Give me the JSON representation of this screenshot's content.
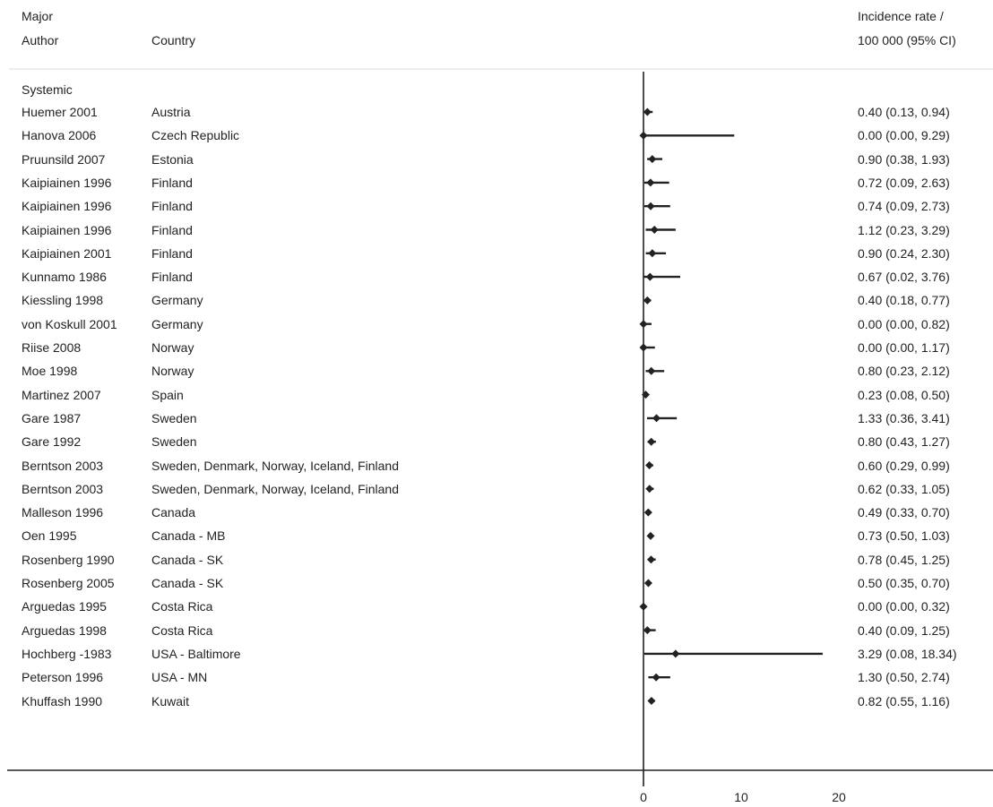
{
  "headers": {
    "author_line1": "Major",
    "author_line2": "Author",
    "country": "Country",
    "estimate_line1": "Incidence rate /",
    "estimate_line2": "100 000 (95% CI)"
  },
  "section_label": "Systemic",
  "chart_data": {
    "type": "forest",
    "x_ticks": [
      0,
      10,
      20
    ],
    "x_tick_labels": [
      "0",
      "10",
      "20"
    ],
    "rows": [
      {
        "author": "Huemer 2001",
        "country": "Austria",
        "estimate": 0.4,
        "lower": 0.13,
        "upper": 0.94,
        "label": "0.40 (0.13, 0.94)"
      },
      {
        "author": "Hanova 2006",
        "country": "Czech Republic",
        "estimate": 0.0,
        "lower": 0.0,
        "upper": 9.29,
        "label": "0.00 (0.00, 9.29)"
      },
      {
        "author": "Pruunsild 2007",
        "country": "Estonia",
        "estimate": 0.9,
        "lower": 0.38,
        "upper": 1.93,
        "label": "0.90 (0.38, 1.93)"
      },
      {
        "author": "Kaipiainen 1996",
        "country": "Finland",
        "estimate": 0.72,
        "lower": 0.09,
        "upper": 2.63,
        "label": "0.72 (0.09, 2.63)"
      },
      {
        "author": "Kaipiainen 1996",
        "country": "Finland",
        "estimate": 0.74,
        "lower": 0.09,
        "upper": 2.73,
        "label": "0.74 (0.09, 2.73)"
      },
      {
        "author": "Kaipiainen 1996",
        "country": "Finland",
        "estimate": 1.12,
        "lower": 0.23,
        "upper": 3.29,
        "label": "1.12 (0.23, 3.29)"
      },
      {
        "author": "Kaipiainen 2001",
        "country": "Finland",
        "estimate": 0.9,
        "lower": 0.24,
        "upper": 2.3,
        "label": "0.90 (0.24, 2.30)"
      },
      {
        "author": "Kunnamo 1986",
        "country": "Finland",
        "estimate": 0.67,
        "lower": 0.02,
        "upper": 3.76,
        "label": "0.67 (0.02, 3.76)"
      },
      {
        "author": "Kiessling 1998",
        "country": "Germany",
        "estimate": 0.4,
        "lower": 0.18,
        "upper": 0.77,
        "label": "0.40 (0.18, 0.77)"
      },
      {
        "author": "von Koskull 2001",
        "country": "Germany",
        "estimate": 0.0,
        "lower": 0.0,
        "upper": 0.82,
        "label": "0.00 (0.00, 0.82)"
      },
      {
        "author": "Riise 2008",
        "country": "Norway",
        "estimate": 0.0,
        "lower": 0.0,
        "upper": 1.17,
        "label": "0.00 (0.00, 1.17)"
      },
      {
        "author": "Moe 1998",
        "country": "Norway",
        "estimate": 0.8,
        "lower": 0.23,
        "upper": 2.12,
        "label": "0.80 (0.23, 2.12)"
      },
      {
        "author": "Martinez 2007",
        "country": "Spain",
        "estimate": 0.23,
        "lower": 0.08,
        "upper": 0.5,
        "label": "0.23 (0.08, 0.50)"
      },
      {
        "author": "Gare 1987",
        "country": "Sweden",
        "estimate": 1.33,
        "lower": 0.36,
        "upper": 3.41,
        "label": "1.33 (0.36, 3.41)"
      },
      {
        "author": "Gare 1992",
        "country": "Sweden",
        "estimate": 0.8,
        "lower": 0.43,
        "upper": 1.27,
        "label": "0.80 (0.43, 1.27)"
      },
      {
        "author": "Berntson 2003",
        "country": "Sweden, Denmark, Norway, Iceland, Finland",
        "estimate": 0.6,
        "lower": 0.29,
        "upper": 0.99,
        "label": "0.60 (0.29, 0.99)"
      },
      {
        "author": "Berntson 2003",
        "country": "Sweden, Denmark, Norway, Iceland, Finland",
        "estimate": 0.62,
        "lower": 0.33,
        "upper": 1.05,
        "label": "0.62 (0.33, 1.05)"
      },
      {
        "author": "Malleson 1996",
        "country": "Canada",
        "estimate": 0.49,
        "lower": 0.33,
        "upper": 0.7,
        "label": "0.49 (0.33, 0.70)"
      },
      {
        "author": "Oen 1995",
        "country": "Canada - MB",
        "estimate": 0.73,
        "lower": 0.5,
        "upper": 1.03,
        "label": "0.73 (0.50, 1.03)"
      },
      {
        "author": "Rosenberg 1990",
        "country": "Canada - SK",
        "estimate": 0.78,
        "lower": 0.45,
        "upper": 1.25,
        "label": "0.78 (0.45, 1.25)"
      },
      {
        "author": "Rosenberg 2005",
        "country": "Canada - SK",
        "estimate": 0.5,
        "lower": 0.35,
        "upper": 0.7,
        "label": "0.50 (0.35, 0.70)"
      },
      {
        "author": "Arguedas 1995",
        "country": "Costa Rica",
        "estimate": 0.0,
        "lower": 0.0,
        "upper": 0.32,
        "label": "0.00 (0.00, 0.32)"
      },
      {
        "author": "Arguedas 1998",
        "country": "Costa Rica",
        "estimate": 0.4,
        "lower": 0.09,
        "upper": 1.25,
        "label": "0.40 (0.09, 1.25)"
      },
      {
        "author": "Hochberg -1983",
        "country": "USA - Baltimore",
        "estimate": 3.29,
        "lower": 0.08,
        "upper": 18.34,
        "label": "3.29 (0.08, 18.34)"
      },
      {
        "author": "Peterson 1996",
        "country": "USA - MN",
        "estimate": 1.3,
        "lower": 0.5,
        "upper": 2.74,
        "label": "1.30 (0.50, 2.74)"
      },
      {
        "author": "Khuffash 1990",
        "country": "Kuwait",
        "estimate": 0.82,
        "lower": 0.55,
        "upper": 1.16,
        "label": "0.82 (0.55, 1.16)"
      }
    ]
  }
}
